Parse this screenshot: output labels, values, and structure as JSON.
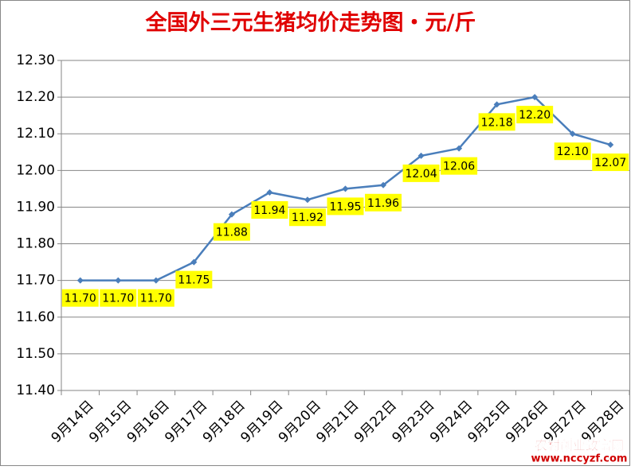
{
  "chart_data": {
    "type": "line",
    "title": "全国外三元生猪均价走势图・元/斤",
    "categories": [
      "9月14日",
      "9月15日",
      "9月16日",
      "9月17日",
      "9月18日",
      "9月19日",
      "9月20日",
      "9月21日",
      "9月22日",
      "9月23日",
      "9月24日",
      "9月25日",
      "9月26日",
      "9月27日",
      "9月28日"
    ],
    "values": [
      11.7,
      11.7,
      11.7,
      11.75,
      11.88,
      11.94,
      11.92,
      11.95,
      11.96,
      12.04,
      12.06,
      12.18,
      12.2,
      12.1,
      12.07
    ],
    "value_labels": [
      "11.70",
      "11.70",
      "11.70",
      "11.75",
      "11.88",
      "11.94",
      "11.92",
      "11.95",
      "11.96",
      "12.04",
      "12.06",
      "12.18",
      "12.20",
      "12.10",
      "12.07"
    ],
    "color": "#4a7ebb",
    "ylim": [
      11.4,
      12.3
    ],
    "yticks": [
      {
        "value": 11.4,
        "label": "11.40"
      },
      {
        "value": 11.5,
        "label": "11.50"
      },
      {
        "value": 11.6,
        "label": "11.60"
      },
      {
        "value": 11.7,
        "label": "11.70"
      },
      {
        "value": 11.8,
        "label": "11.80"
      },
      {
        "value": 11.9,
        "label": "11.90"
      },
      {
        "value": 12.0,
        "label": "12.00"
      },
      {
        "value": 12.1,
        "label": "12.10"
      },
      {
        "value": 12.2,
        "label": "12.20"
      },
      {
        "value": 12.3,
        "label": "12.30"
      }
    ],
    "grid": true,
    "watermark": [
      "农村创业致富网",
      "www.nccyzf.com"
    ]
  }
}
